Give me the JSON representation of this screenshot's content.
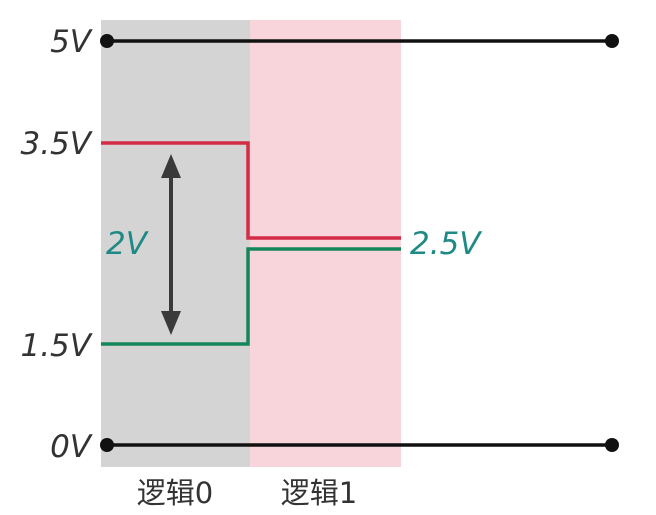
{
  "diagram": {
    "voltage_labels": {
      "top": "5V",
      "high": "3.5V",
      "low": "1.5V",
      "bottom": "0V"
    },
    "difference_label": "2V",
    "mid_label": "2.5V",
    "regions": {
      "logic0": "逻辑0",
      "logic1": "逻辑1"
    },
    "colors": {
      "logic0_band": "#d4d4d4",
      "logic1_band": "#f8d5db",
      "red_line": "#d42b46",
      "green_line": "#14875a",
      "rail": "#111111",
      "arrow": "#3a3a3a",
      "label_teal": "#1f8a85"
    }
  }
}
